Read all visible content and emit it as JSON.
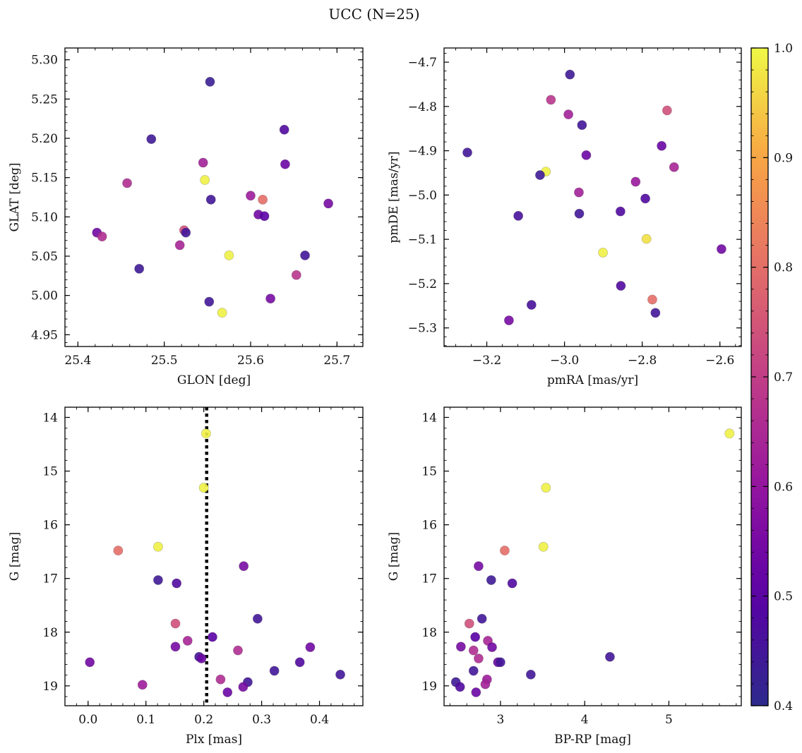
{
  "figure": {
    "title": "UCC (N=25)"
  },
  "colorbar": {
    "min": 0.4,
    "max": 1.0,
    "ticks": [
      0.4,
      0.5,
      0.6,
      0.7,
      0.8,
      0.9,
      1.0
    ],
    "tick_labels": [
      "0.4",
      "0.5",
      "0.6",
      "0.7",
      "0.8",
      "0.9",
      "1.0"
    ],
    "colormap": "plasma"
  },
  "chart_data": [
    {
      "id": "radec",
      "type": "scatter",
      "xlabel": "GLON [deg]",
      "ylabel": "GLAT [deg]",
      "xlim": [
        25.385,
        25.73
      ],
      "ylim": [
        4.935,
        5.315
      ],
      "invert_y": false,
      "xticks": [
        25.4,
        25.5,
        25.6,
        25.7
      ],
      "xtick_labels": [
        "25.4",
        "25.5",
        "25.6",
        "25.7"
      ],
      "yticks": [
        4.95,
        5.0,
        5.05,
        5.1,
        5.15,
        5.2,
        5.25,
        5.3
      ],
      "ytick_labels": [
        "4.95",
        "5.00",
        "5.05",
        "5.10",
        "5.15",
        "5.20",
        "5.25",
        "5.30"
      ],
      "x": [
        25.553,
        25.485,
        25.639,
        25.64,
        25.545,
        25.457,
        25.547,
        25.6,
        25.614,
        25.554,
        25.609,
        25.616,
        25.69,
        25.523,
        25.525,
        25.422,
        25.428,
        25.518,
        25.575,
        25.663,
        25.471,
        25.653,
        25.623,
        25.552,
        25.567
      ],
      "y": [
        5.272,
        5.199,
        5.211,
        5.167,
        5.169,
        5.143,
        5.147,
        5.127,
        5.122,
        5.122,
        5.103,
        5.101,
        5.117,
        5.083,
        5.08,
        5.08,
        5.075,
        5.064,
        5.051,
        5.051,
        5.034,
        5.026,
        4.996,
        4.992,
        4.978
      ],
      "prob": [
        0.43,
        0.44,
        0.48,
        0.53,
        0.63,
        0.66,
        0.99,
        0.62,
        0.8,
        0.45,
        0.54,
        0.5,
        0.55,
        0.74,
        0.45,
        0.54,
        0.66,
        0.64,
        0.99,
        0.45,
        0.44,
        0.68,
        0.55,
        0.45,
        0.99
      ]
    },
    {
      "id": "pm",
      "type": "scatter",
      "xlabel": "pmRA [mas/yr]",
      "ylabel": "pmDE [mas/yr]",
      "xlim": [
        -3.31,
        -2.545
      ],
      "ylim": [
        -5.342,
        -4.668
      ],
      "invert_y": false,
      "xticks": [
        -3.2,
        -3.0,
        -2.8,
        -2.6
      ],
      "xtick_labels": [
        "−3.2",
        "−3.0",
        "−2.8",
        "−2.6"
      ],
      "yticks": [
        -5.3,
        -5.2,
        -5.1,
        -5.0,
        -4.9,
        -4.8,
        -4.7
      ],
      "ytick_labels": [
        "−5.3",
        "−5.2",
        "−5.1",
        "−5.0",
        "−4.9",
        "−4.8",
        "−4.7"
      ],
      "x": [
        -2.986,
        -3.035,
        -2.99,
        -2.955,
        -2.736,
        -3.25,
        -2.944,
        -2.75,
        -3.048,
        -2.718,
        -3.063,
        -2.817,
        -2.963,
        -2.792,
        -2.962,
        -2.856,
        -3.119,
        -2.789,
        -2.596,
        -2.901,
        -2.855,
        -2.774,
        -3.085,
        -2.766,
        -3.143
      ],
      "y": [
        -4.728,
        -4.785,
        -4.818,
        -4.842,
        -4.809,
        -4.904,
        -4.91,
        -4.889,
        -4.947,
        -4.937,
        -4.955,
        -4.97,
        -4.994,
        -5.008,
        -5.042,
        -5.037,
        -5.047,
        -5.099,
        -5.122,
        -5.13,
        -5.205,
        -5.236,
        -5.248,
        -5.266,
        -5.283
      ],
      "prob": [
        0.44,
        0.68,
        0.63,
        0.45,
        0.74,
        0.45,
        0.53,
        0.53,
        0.99,
        0.64,
        0.44,
        0.61,
        0.63,
        0.48,
        0.45,
        0.48,
        0.46,
        0.97,
        0.54,
        0.99,
        0.48,
        0.8,
        0.46,
        0.45,
        0.55
      ]
    },
    {
      "id": "plx",
      "type": "scatter",
      "xlabel": "Plx [mas]",
      "ylabel": "G [mag]",
      "xlim": [
        -0.04,
        0.475
      ],
      "ylim": [
        13.81,
        19.37
      ],
      "invert_y": true,
      "xticks": [
        0.0,
        0.1,
        0.2,
        0.3,
        0.4
      ],
      "xtick_labels": [
        "0.0",
        "0.1",
        "0.2",
        "0.3",
        "0.4"
      ],
      "yticks": [
        14,
        15,
        16,
        17,
        18,
        19
      ],
      "ytick_labels": [
        "14",
        "15",
        "16",
        "17",
        "18",
        "19"
      ],
      "vline": {
        "x": 0.205,
        "style": "dotted"
      },
      "x": [
        0.204,
        0.2,
        0.052,
        0.121,
        0.121,
        0.153,
        0.269,
        0.151,
        0.293,
        0.172,
        0.215,
        0.151,
        0.259,
        0.384,
        0.192,
        0.196,
        0.003,
        0.366,
        0.322,
        0.094,
        0.229,
        0.276,
        0.268,
        0.241,
        0.436
      ],
      "y": [
        14.3,
        15.31,
        16.48,
        16.41,
        17.03,
        17.09,
        16.77,
        17.84,
        17.75,
        18.16,
        18.09,
        18.27,
        18.34,
        18.28,
        18.46,
        18.49,
        18.56,
        18.56,
        18.72,
        18.98,
        18.88,
        18.93,
        19.02,
        19.12,
        18.79
      ],
      "prob": [
        0.99,
        0.99,
        0.8,
        0.99,
        0.44,
        0.48,
        0.55,
        0.74,
        0.45,
        0.64,
        0.5,
        0.55,
        0.66,
        0.54,
        0.45,
        0.53,
        0.54,
        0.48,
        0.45,
        0.62,
        0.66,
        0.45,
        0.55,
        0.53,
        0.45
      ]
    },
    {
      "id": "cmd",
      "type": "scatter",
      "xlabel": "BP-RP [mag]",
      "ylabel": "G [mag]",
      "xlim": [
        2.33,
        5.86
      ],
      "ylim": [
        13.81,
        19.37
      ],
      "invert_y": true,
      "xticks": [
        3,
        4,
        5
      ],
      "xtick_labels": [
        "3",
        "4",
        "5"
      ],
      "yticks": [
        14,
        15,
        16,
        17,
        18,
        19
      ],
      "ytick_labels": [
        "14",
        "15",
        "16",
        "17",
        "18",
        "19"
      ],
      "x": [
        5.72,
        3.54,
        3.05,
        3.51,
        2.74,
        2.89,
        3.14,
        2.63,
        2.78,
        2.85,
        2.53,
        2.9,
        2.7,
        2.68,
        2.74,
        2.97,
        3.0,
        4.3,
        2.68,
        3.36,
        2.84,
        2.82,
        2.47,
        2.71,
        2.52
      ],
      "y": [
        14.3,
        15.31,
        16.48,
        16.41,
        16.77,
        17.03,
        17.09,
        17.84,
        17.75,
        18.16,
        18.27,
        18.28,
        18.09,
        18.34,
        18.49,
        18.56,
        18.56,
        18.46,
        18.72,
        18.79,
        18.88,
        18.97,
        18.93,
        19.12,
        19.02
      ],
      "prob": [
        0.99,
        0.99,
        0.8,
        0.99,
        0.55,
        0.44,
        0.48,
        0.74,
        0.45,
        0.64,
        0.55,
        0.54,
        0.5,
        0.66,
        0.66,
        0.53,
        0.45,
        0.45,
        0.45,
        0.45,
        0.62,
        0.63,
        0.44,
        0.53,
        0.48
      ]
    }
  ]
}
